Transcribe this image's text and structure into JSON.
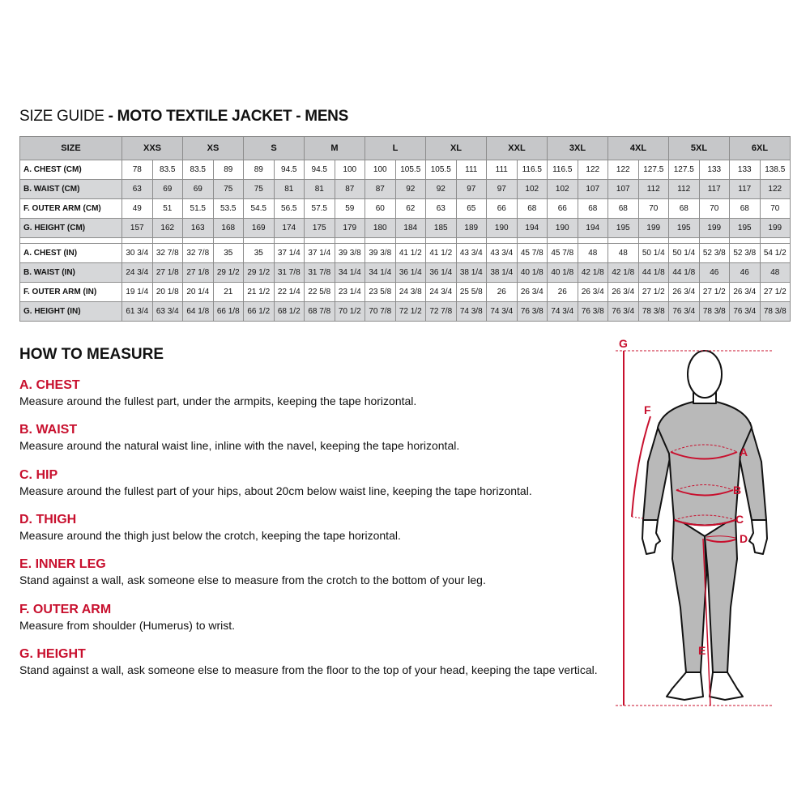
{
  "title": {
    "prefix": "SIZE GUIDE",
    "main": " - MOTO TEXTILE JACKET - MENS"
  },
  "table": {
    "size_header": "SIZE",
    "sizes": [
      "XXS",
      "XS",
      "S",
      "M",
      "L",
      "XL",
      "XXL",
      "3XL",
      "4XL",
      "5XL",
      "6XL"
    ],
    "cm_rows": [
      {
        "label": "A. CHEST (CM)",
        "values": [
          "78",
          "83.5",
          "83.5",
          "89",
          "89",
          "94.5",
          "94.5",
          "100",
          "100",
          "105.5",
          "105.5",
          "111",
          "111",
          "116.5",
          "116.5",
          "122",
          "122",
          "127.5",
          "127.5",
          "133",
          "133",
          "138.5"
        ]
      },
      {
        "label": "B. WAIST (CM)",
        "values": [
          "63",
          "69",
          "69",
          "75",
          "75",
          "81",
          "81",
          "87",
          "87",
          "92",
          "92",
          "97",
          "97",
          "102",
          "102",
          "107",
          "107",
          "112",
          "112",
          "117",
          "117",
          "122"
        ]
      },
      {
        "label": "F. OUTER ARM (CM)",
        "values": [
          "49",
          "51",
          "51.5",
          "53.5",
          "54.5",
          "56.5",
          "57.5",
          "59",
          "60",
          "62",
          "63",
          "65",
          "66",
          "68",
          "66",
          "68",
          "68",
          "70",
          "68",
          "70",
          "68",
          "70"
        ]
      },
      {
        "label": "G. HEIGHT (CM)",
        "values": [
          "157",
          "162",
          "163",
          "168",
          "169",
          "174",
          "175",
          "179",
          "180",
          "184",
          "185",
          "189",
          "190",
          "194",
          "190",
          "194",
          "195",
          "199",
          "195",
          "199",
          "195",
          "199"
        ]
      }
    ],
    "in_rows": [
      {
        "label": "A. CHEST (IN)",
        "values": [
          "30 3/4",
          "32 7/8",
          "32 7/8",
          "35",
          "35",
          "37 1/4",
          "37 1/4",
          "39 3/8",
          "39 3/8",
          "41 1/2",
          "41 1/2",
          "43 3/4",
          "43 3/4",
          "45 7/8",
          "45 7/8",
          "48",
          "48",
          "50 1/4",
          "50 1/4",
          "52 3/8",
          "52 3/8",
          "54 1/2"
        ]
      },
      {
        "label": "B. WAIST (IN)",
        "values": [
          "24 3/4",
          "27 1/8",
          "27 1/8",
          "29 1/2",
          "29 1/2",
          "31 7/8",
          "31 7/8",
          "34 1/4",
          "34 1/4",
          "36 1/4",
          "36 1/4",
          "38 1/4",
          "38 1/4",
          "40 1/8",
          "40 1/8",
          "42 1/8",
          "42 1/8",
          "44 1/8",
          "44 1/8",
          "46",
          "46",
          "48"
        ]
      },
      {
        "label": "F. OUTER ARM (IN)",
        "values": [
          "19 1/4",
          "20 1/8",
          "20 1/4",
          "21",
          "21 1/2",
          "22 1/4",
          "22 5/8",
          "23 1/4",
          "23 5/8",
          "24 3/8",
          "24 3/4",
          "25 5/8",
          "26",
          "26 3/4",
          "26",
          "26 3/4",
          "26 3/4",
          "27 1/2",
          "26 3/4",
          "27 1/2",
          "26 3/4",
          "27 1/2"
        ]
      },
      {
        "label": "G. HEIGHT (IN)",
        "values": [
          "61 3/4",
          "63 3/4",
          "64 1/8",
          "66 1/8",
          "66 1/2",
          "68 1/2",
          "68 7/8",
          "70 1/2",
          "70 7/8",
          "72 1/2",
          "72 7/8",
          "74 3/8",
          "74 3/4",
          "76 3/8",
          "74 3/4",
          "76 3/8",
          "76 3/4",
          "78 3/8",
          "76 3/4",
          "78 3/8",
          "76 3/4",
          "78 3/8"
        ]
      }
    ]
  },
  "how_to_measure": {
    "heading": "HOW TO MEASURE",
    "sections": [
      {
        "title": "A. CHEST",
        "text": "Measure around the fullest part, under the armpits, keeping the tape horizontal."
      },
      {
        "title": "B. WAIST",
        "text": "Measure around the natural waist line, inline with the navel, keeping the tape horizontal."
      },
      {
        "title": "C. HIP",
        "text": "Measure around the fullest part of your hips, about 20cm below waist line, keeping the tape horizontal."
      },
      {
        "title": "D. THIGH",
        "text": "Measure around the thigh just below the crotch, keeping the tape horizontal."
      },
      {
        "title": "E. INNER LEG",
        "text": "Stand against a wall, ask someone else to measure from the crotch to the bottom of your leg."
      },
      {
        "title": "F. OUTER ARM",
        "text": "Measure from shoulder (Humerus) to wrist."
      },
      {
        "title": "G. HEIGHT",
        "text": "Stand against a wall, ask someone else to measure from the floor to the top of your head, keeping the tape vertical."
      }
    ]
  },
  "figure": {
    "labels": {
      "a": "A",
      "b": "B",
      "c": "C",
      "d": "D",
      "e": "E",
      "f": "F",
      "g": "G"
    }
  },
  "colors": {
    "accent_red": "#c8102e",
    "header_gray": "#c6c7c9",
    "row_gray": "#d6d7d9",
    "body_gray": "#b9b9b9"
  }
}
